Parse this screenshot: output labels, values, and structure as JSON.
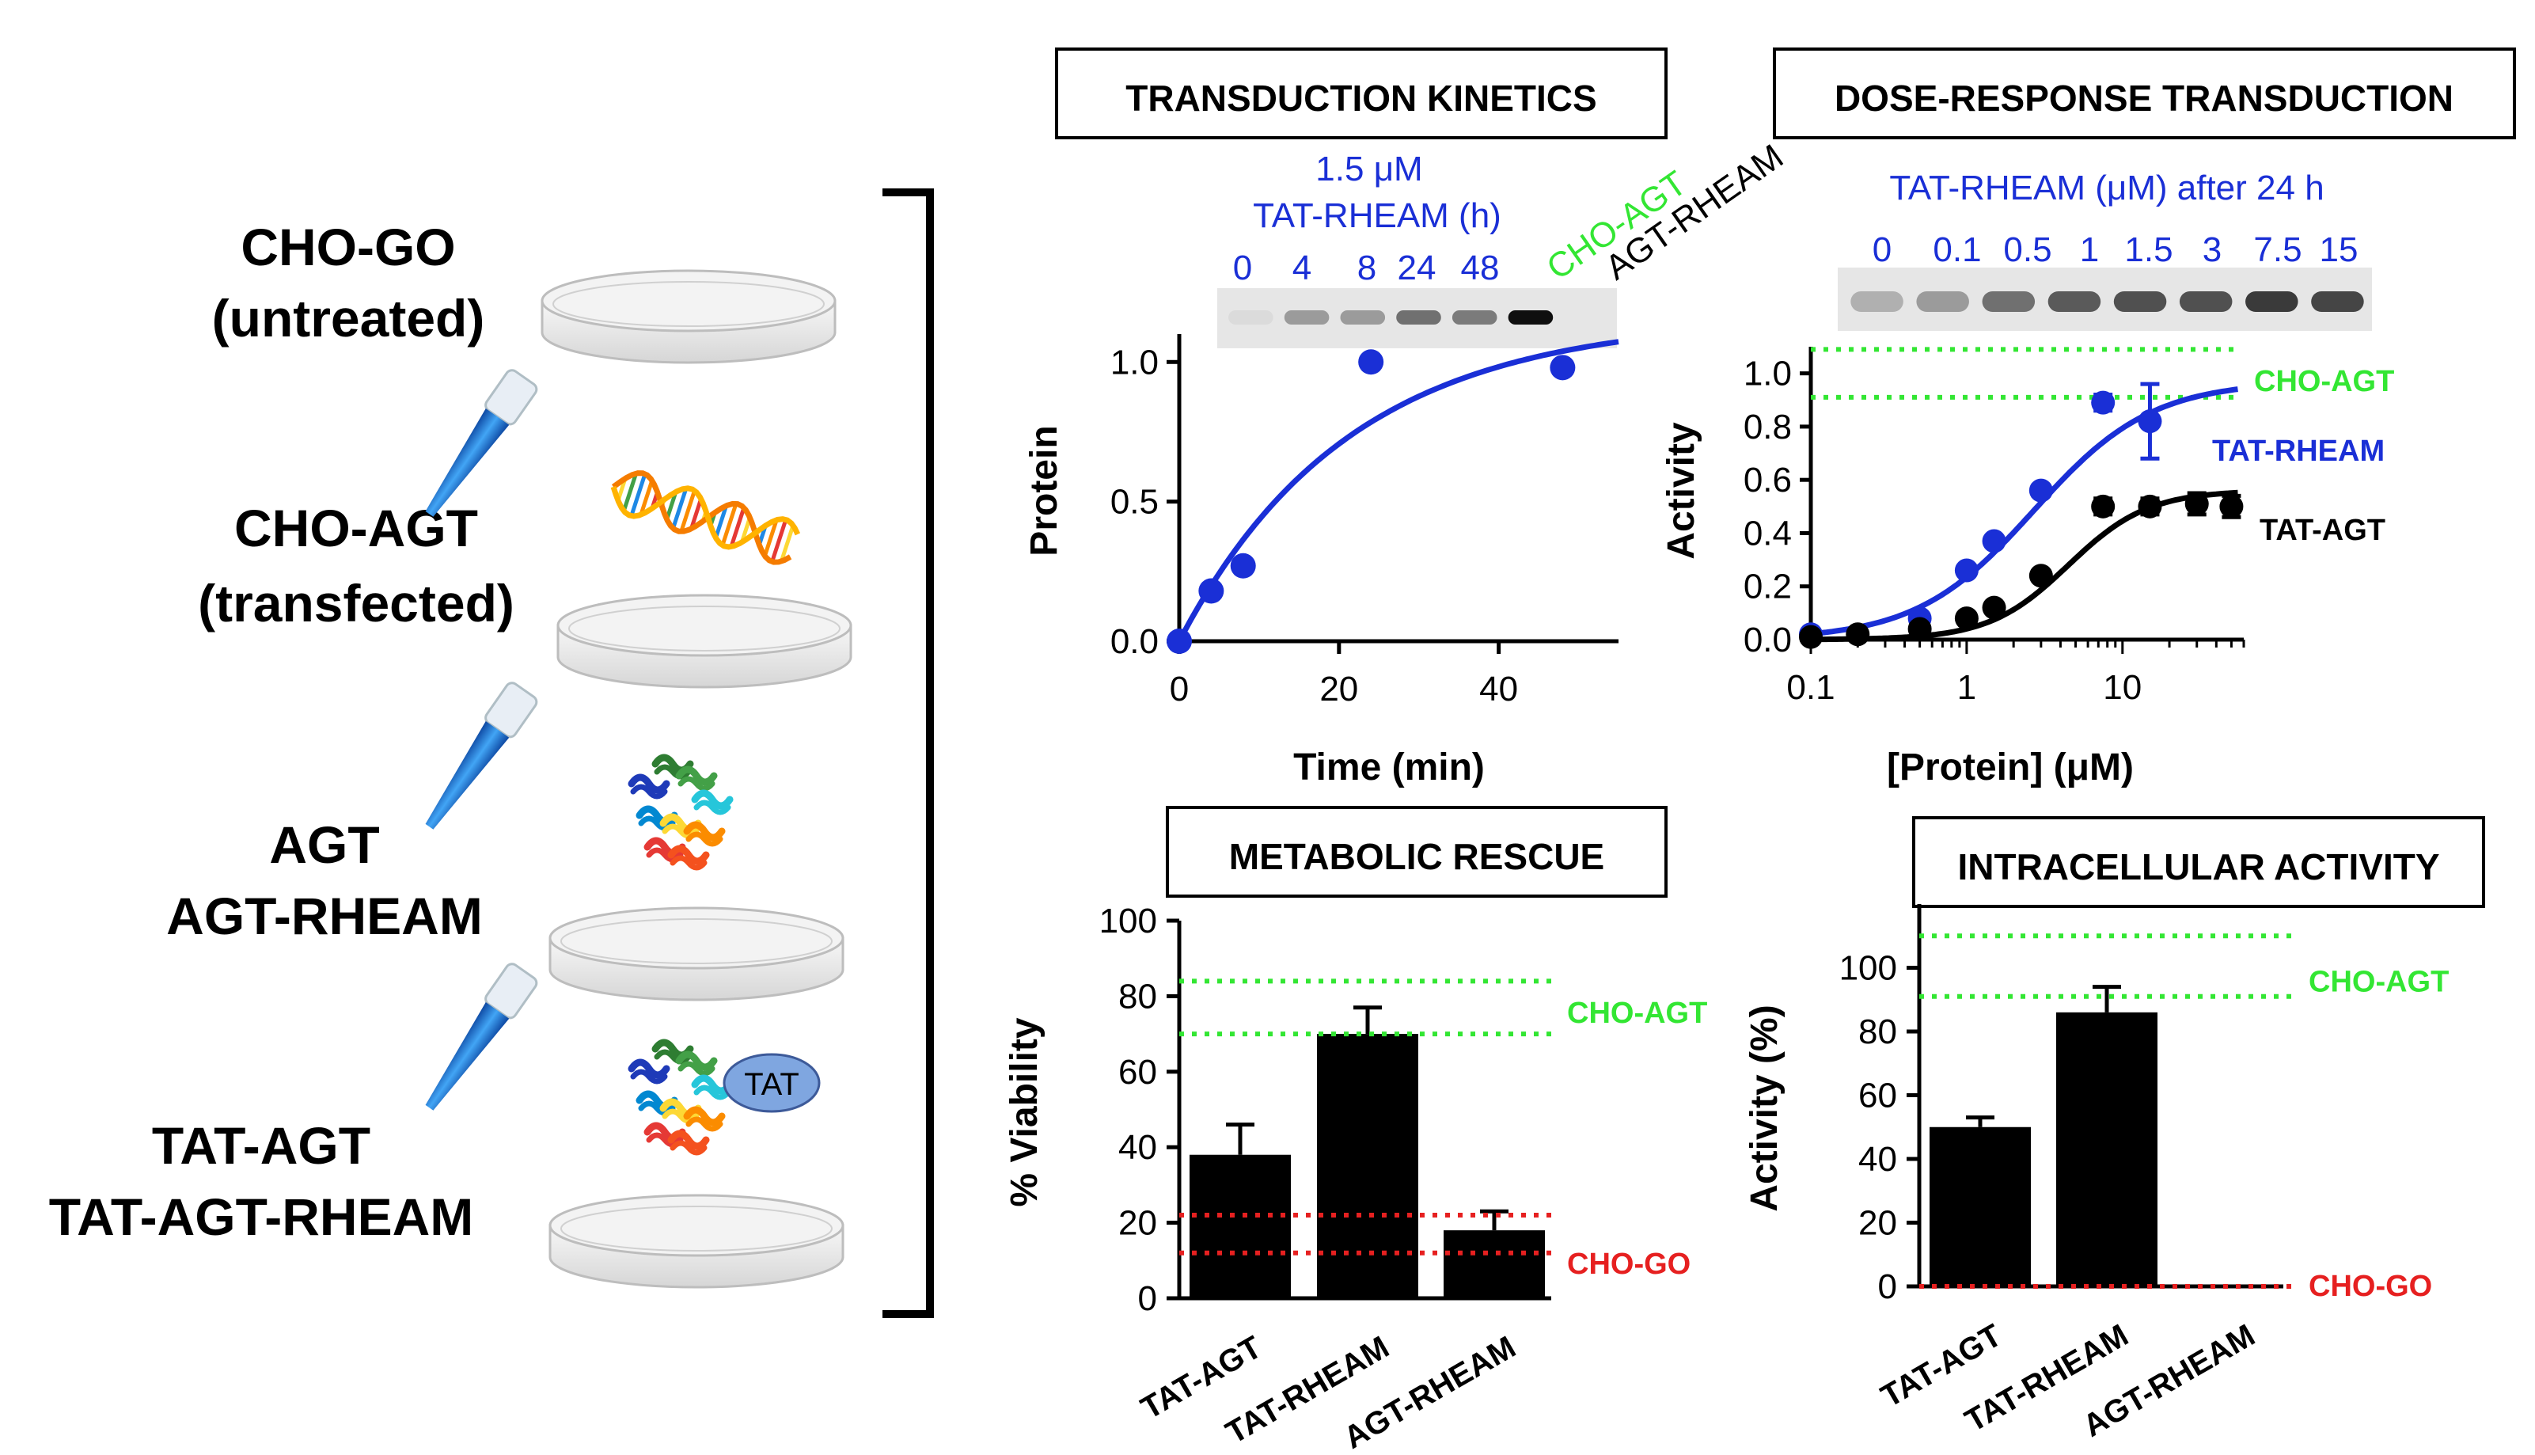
{
  "colors": {
    "blue": "#1a2fd6",
    "green": "#33e633",
    "red": "#e62020",
    "black": "#000000",
    "dish_fill": "#eeeeee",
    "dish_stroke": "#bdbdbd",
    "pipette": "#1565c0",
    "tat_bubble": "#7fa6e0"
  },
  "left_panel": {
    "groups": [
      {
        "line1": "CHO-GO",
        "line2": "(untreated)",
        "treatment": "none"
      },
      {
        "line1": "CHO-AGT",
        "line2": "(transfected)",
        "treatment": "dna"
      },
      {
        "line1": "AGT",
        "line2": "AGT-RHEAM",
        "treatment": "protein"
      },
      {
        "line1": "TAT-AGT",
        "line2": "TAT-AGT-RHEAM",
        "treatment": "tat-protein"
      }
    ],
    "tat_label": "TAT",
    "icons": [
      "pipette-icon",
      "dna-helix-icon",
      "protein-structure-icon",
      "petri-dish-icon"
    ]
  },
  "kinetics": {
    "box_title": "TRANSDUCTION KINETICS",
    "blot_header_line1": "1.5 μM",
    "blot_header_line2": "TAT-RHEAM (h)",
    "lanes": [
      {
        "label": "0",
        "intensity": 0.05,
        "color": "blue"
      },
      {
        "label": "4",
        "intensity": 0.35,
        "color": "blue"
      },
      {
        "label": "8",
        "intensity": 0.35,
        "color": "blue"
      },
      {
        "label": "24",
        "intensity": 0.55,
        "color": "blue"
      },
      {
        "label": "48",
        "intensity": 0.5,
        "color": "blue"
      },
      {
        "label": "CHO-AGT",
        "intensity": 1.0,
        "color": "green",
        "rotated": true
      },
      {
        "label": "AGT-RHEAM",
        "intensity": 0.0,
        "color": "black",
        "rotated": true
      }
    ]
  },
  "dose": {
    "box_title": "DOSE-RESPONSE TRANSDUCTION",
    "blot_header": "TAT-RHEAM (μM) after 24 h",
    "lanes": [
      {
        "label": "0",
        "intensity": 0.25
      },
      {
        "label": "0.1",
        "intensity": 0.35
      },
      {
        "label": "0.5",
        "intensity": 0.55
      },
      {
        "label": "1",
        "intensity": 0.65
      },
      {
        "label": "1.5",
        "intensity": 0.7
      },
      {
        "label": "3",
        "intensity": 0.7
      },
      {
        "label": "7.5",
        "intensity": 0.8
      },
      {
        "label": "15",
        "intensity": 0.75
      }
    ]
  },
  "rescue": {
    "box_title": "METABOLIC RESCUE",
    "ref_labels": {
      "green": "CHO-AGT",
      "red": "CHO-GO"
    }
  },
  "intracellular": {
    "box_title": "INTRACELLULAR ACTIVITY",
    "ref_labels": {
      "green": "CHO-AGT",
      "red": "CHO-GO"
    }
  },
  "chart_data": [
    {
      "id": "kinetics",
      "type": "scatter",
      "xlabel": "Time (min)",
      "ylabel": "Protein",
      "xlim": [
        0,
        55
      ],
      "ylim": [
        0,
        1.1
      ],
      "xticks": [
        0,
        20,
        40
      ],
      "yticks": [
        0.0,
        0.5,
        1.0
      ],
      "tick_labels_y": [
        "0.0",
        "0.5",
        "1.0"
      ],
      "series": [
        {
          "color": "blue",
          "x": [
            0,
            4,
            8,
            24,
            48
          ],
          "y": [
            0.0,
            0.18,
            0.27,
            1.0,
            0.98
          ],
          "fit": {
            "model": "one-phase association",
            "ymax": 1.16,
            "k": 0.047
          }
        }
      ]
    },
    {
      "id": "dose",
      "type": "scatter",
      "xlabel": "[Protein] (μM)",
      "ylabel": "Activity",
      "xscale": "log",
      "xlim": [
        0.1,
        60
      ],
      "ylim": [
        0,
        1.1
      ],
      "xticks": [
        0.1,
        1,
        10
      ],
      "tick_labels_x": [
        "0.1",
        "1",
        "10"
      ],
      "yticks": [
        0.0,
        0.2,
        0.4,
        0.6,
        0.8,
        1.0
      ],
      "tick_labels_y": [
        "0.0",
        "0.2",
        "0.4",
        "0.6",
        "0.8",
        "1.0"
      ],
      "reference_lines": [
        {
          "y": 1.09,
          "color": "green",
          "label": ""
        },
        {
          "y": 0.91,
          "color": "green",
          "label": "CHO-AGT"
        }
      ],
      "series": [
        {
          "name": "TAT-RHEAM",
          "color": "blue",
          "x": [
            0.1,
            0.5,
            1,
            1.5,
            3,
            7.5,
            15
          ],
          "y": [
            0.02,
            0.08,
            0.26,
            0.37,
            0.56,
            0.89,
            0.82
          ],
          "err": [
            0,
            0,
            0,
            0,
            0.02,
            0.03,
            0.14
          ],
          "fit": {
            "bottom": 0,
            "top": 0.97,
            "ec50": 2.7,
            "hill": 1.15
          }
        },
        {
          "name": "TAT-AGT",
          "color": "black",
          "x": [
            0.1,
            0.2,
            0.5,
            1,
            1.5,
            3,
            7.5,
            15,
            30,
            50
          ],
          "y": [
            0.01,
            0.02,
            0.04,
            0.08,
            0.12,
            0.24,
            0.5,
            0.5,
            0.51,
            0.5
          ],
          "err": [
            0,
            0,
            0,
            0,
            0,
            0,
            0.03,
            0.03,
            0.04,
            0.04
          ],
          "fit": {
            "bottom": 0,
            "top": 0.56,
            "ec50": 4.5,
            "hill": 1.7
          }
        }
      ]
    },
    {
      "id": "rescue",
      "type": "bar",
      "ylabel": "% Viability",
      "ylim": [
        0,
        100
      ],
      "yticks": [
        0,
        20,
        40,
        60,
        80,
        100
      ],
      "categories": [
        "TAT-AGT",
        "TAT-RHEAM",
        "AGT-RHEAM"
      ],
      "values": [
        38,
        70,
        18
      ],
      "errors": [
        8,
        7,
        5
      ],
      "reference_lines": [
        {
          "y": 84,
          "color": "green"
        },
        {
          "y": 70,
          "color": "green",
          "label": "CHO-AGT"
        },
        {
          "y": 22,
          "color": "red"
        },
        {
          "y": 12,
          "color": "red",
          "label": "CHO-GO"
        }
      ]
    },
    {
      "id": "intracellular",
      "type": "bar",
      "ylabel": "Activity (%)",
      "ylim": [
        0,
        120
      ],
      "yticks": [
        0,
        20,
        40,
        60,
        80,
        100
      ],
      "categories": [
        "TAT-AGT",
        "TAT-RHEAM",
        "AGT-RHEAM"
      ],
      "values": [
        50,
        86,
        0
      ],
      "errors": [
        3,
        8,
        0
      ],
      "reference_lines": [
        {
          "y": 110,
          "color": "green"
        },
        {
          "y": 91,
          "color": "green",
          "label": "CHO-AGT"
        },
        {
          "y": 0,
          "color": "red",
          "label": "CHO-GO"
        }
      ]
    }
  ]
}
